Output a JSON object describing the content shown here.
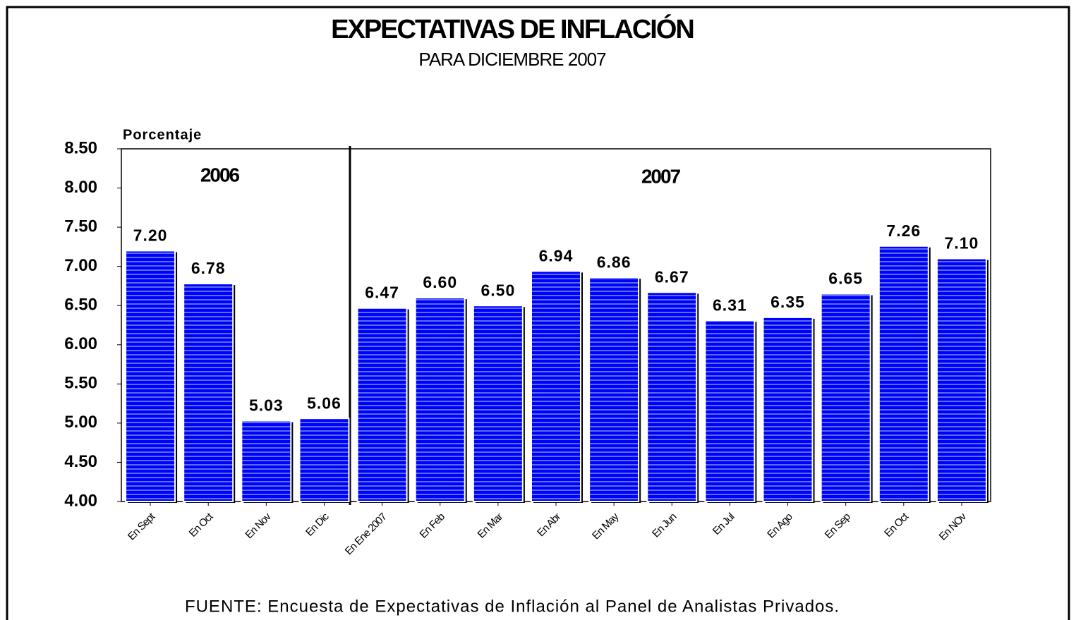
{
  "chart_data": {
    "type": "bar",
    "title": "EXPECTATIVAS DE INFLACIÓN",
    "subtitle": "PARA DICIEMBRE 2007",
    "y_label": "Porcentaje",
    "annotations": [
      "2006",
      "2007"
    ],
    "source": "FUENTE:  Encuesta de Expectativas de Inflación al Panel de Analistas Privados.",
    "categories": [
      "En Sept",
      "En Oct",
      "En Nov",
      "En Dic",
      "En Ene 2007",
      "En Feb",
      "En Mar",
      "En Abr",
      "En May",
      "En Jun",
      "En Jul",
      "En Ago",
      "En Sep",
      "En Oct",
      "En NOv"
    ],
    "values": [
      7.2,
      6.78,
      5.03,
      5.06,
      6.47,
      6.6,
      6.5,
      6.94,
      6.86,
      6.67,
      6.31,
      6.35,
      6.65,
      7.26,
      7.1
    ],
    "value_labels": [
      "7.20",
      "6.78",
      "5.03",
      "5.06",
      "6.47",
      "6.60",
      "6.50",
      "6.94",
      "6.86",
      "6.67",
      "6.31",
      "6.35",
      "6.65",
      "7.26",
      "7.10"
    ],
    "color": "#0000ff",
    "ylim": [
      4,
      8.5
    ],
    "yticks": [
      {
        "value": 4,
        "label": "4.00"
      },
      {
        "value": 4.5,
        "label": "4.50"
      },
      {
        "value": 5,
        "label": "5.00"
      },
      {
        "value": 5.5,
        "label": "5.50"
      },
      {
        "value": 6,
        "label": "6.00"
      },
      {
        "value": 6.5,
        "label": "6.50"
      },
      {
        "value": 7,
        "label": "7.00"
      },
      {
        "value": 7.5,
        "label": "7.50"
      },
      {
        "value": 8,
        "label": "8.00"
      },
      {
        "value": 8.5,
        "label": "8.50"
      }
    ],
    "grid": false
  }
}
